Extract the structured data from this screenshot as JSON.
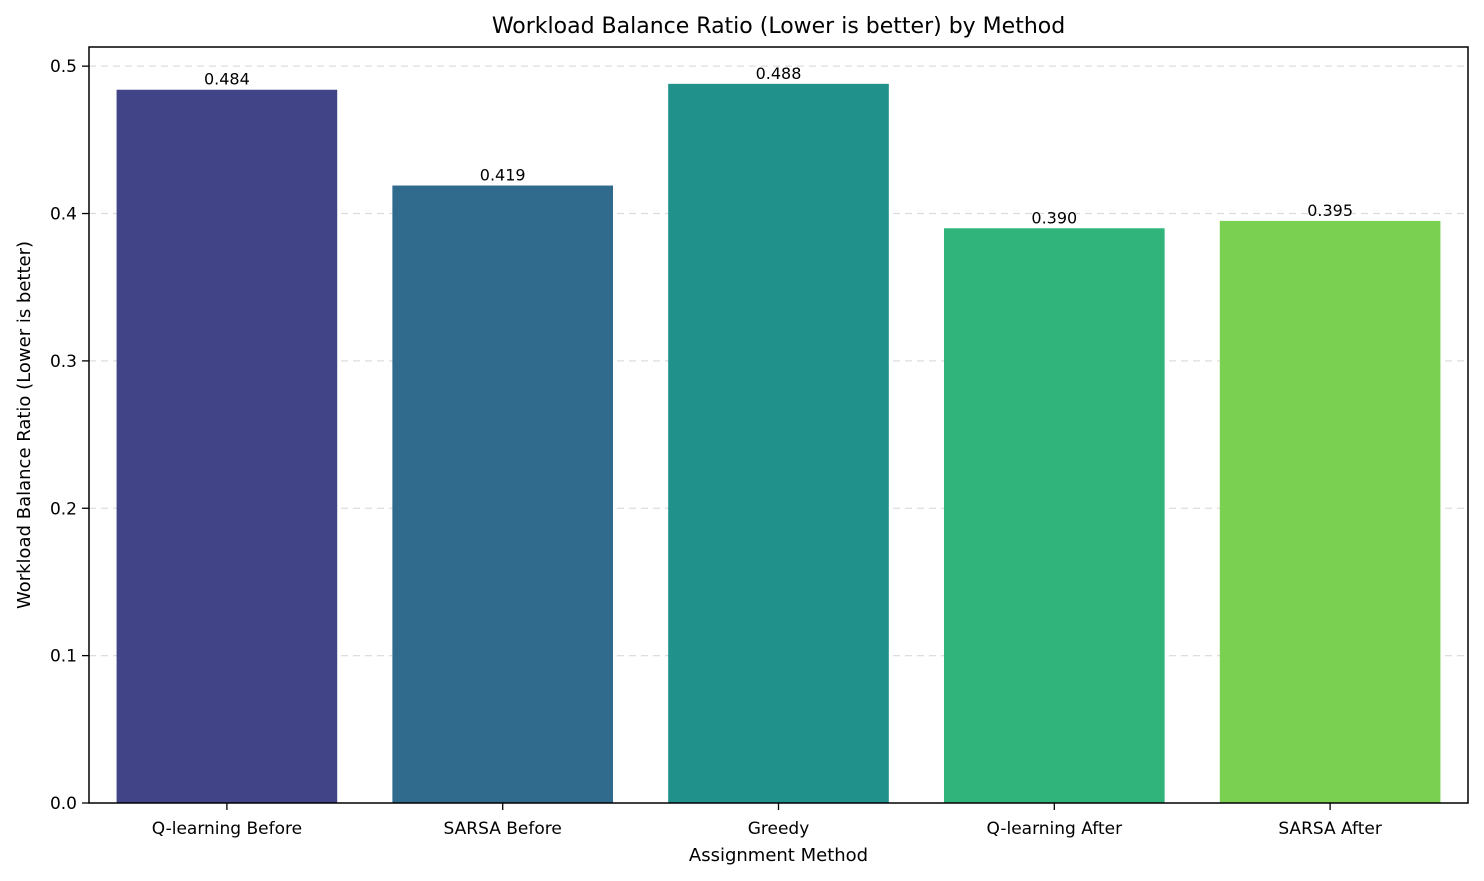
{
  "chart_data": {
    "type": "bar",
    "title": "Workload Balance Ratio (Lower is better) by Method",
    "xlabel": "Assignment Method",
    "ylabel": "Workload Balance Ratio (Lower is better)",
    "categories": [
      "Q-learning Before",
      "SARSA Before",
      "Greedy",
      "Q-learning After",
      "SARSA After"
    ],
    "values": [
      0.484,
      0.419,
      0.488,
      0.39,
      0.395
    ],
    "value_labels": [
      "0.484",
      "0.419",
      "0.488",
      "0.390",
      "0.395"
    ],
    "colors": [
      "#414487",
      "#306b8e",
      "#21918c",
      "#30b47b",
      "#7ad151"
    ],
    "ylim": [
      0,
      0.513
    ],
    "yticks": [
      0.0,
      0.1,
      0.2,
      0.3,
      0.4,
      0.5
    ],
    "ytick_labels": [
      "0.0",
      "0.1",
      "0.2",
      "0.3",
      "0.4",
      "0.5"
    ],
    "grid": "y-dashed",
    "legend": "none"
  }
}
